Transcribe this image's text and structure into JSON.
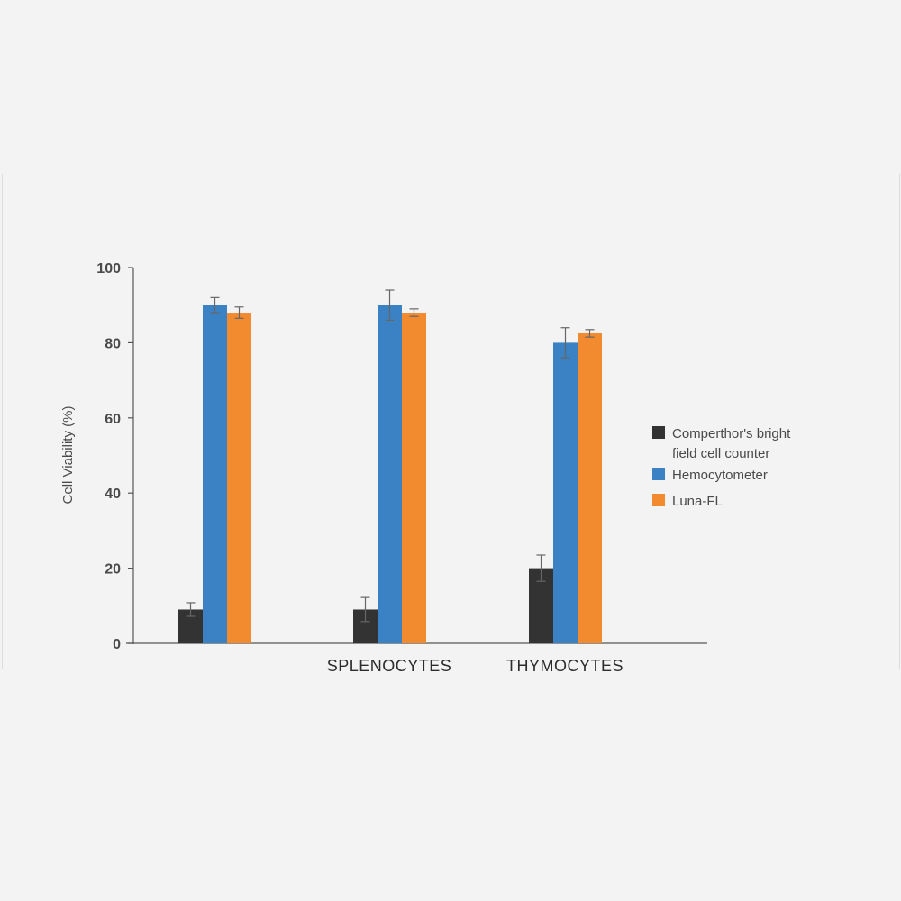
{
  "chart_data": {
    "type": "bar",
    "ylabel": "Cell Viability (%)",
    "ylim": [
      0,
      100
    ],
    "yticks": [
      0,
      20,
      40,
      60,
      80,
      100
    ],
    "categories": [
      "",
      "SPLENOCYTES",
      "THYMOCYTES"
    ],
    "series": [
      {
        "name": "Comperthor's bright field cell counter",
        "name_lines": [
          "Comperthor's bright",
          "field cell counter"
        ],
        "color": "#333333",
        "values": [
          9,
          9,
          20
        ],
        "errors": [
          1.8,
          3.2,
          3.5
        ]
      },
      {
        "name": "Hemocytometer",
        "name_lines": [
          "Hemocytometer"
        ],
        "color": "#3a82c4",
        "values": [
          90,
          90,
          80
        ],
        "errors": [
          2.0,
          4.0,
          4.0
        ]
      },
      {
        "name": "Luna-FL",
        "name_lines": [
          "Luna-FL"
        ],
        "color": "#f28a30",
        "values": [
          88,
          88,
          82.5
        ],
        "errors": [
          1.5,
          1.0,
          1.0
        ]
      }
    ],
    "grid": false,
    "legend_position": "right"
  }
}
